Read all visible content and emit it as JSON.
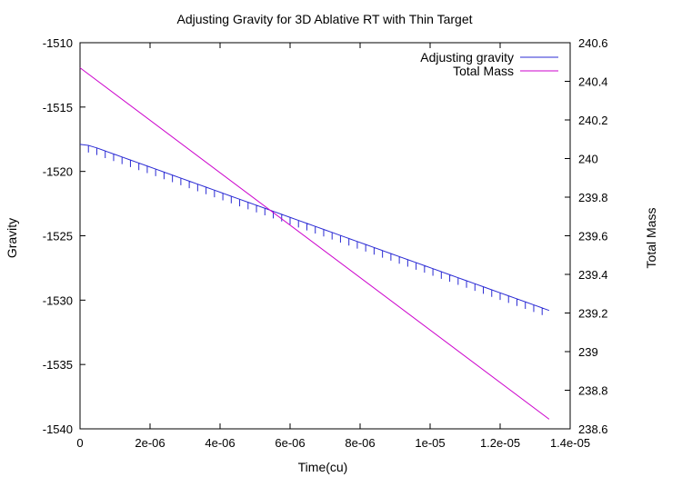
{
  "chart_data": {
    "type": "line",
    "title": "Adjusting Gravity for 3D Ablative RT with Thin Target",
    "xlabel": "Time(cu)",
    "ylabel": "Gravity",
    "y2label": "Total Mass",
    "xlim": [
      0,
      1.4e-05
    ],
    "ylim": [
      -1540,
      -1510
    ],
    "y2lim": [
      238.6,
      240.6
    ],
    "x_ticks": [
      0,
      2e-06,
      4e-06,
      6e-06,
      8e-06,
      1e-05,
      1.2e-05,
      1.4e-05
    ],
    "x_tick_labels": [
      "0",
      "2e-06",
      "4e-06",
      "6e-06",
      "8e-06",
      "1e-05",
      "1.2e-05",
      "1.4e-05"
    ],
    "y_ticks": [
      -1540,
      -1535,
      -1530,
      -1525,
      -1520,
      -1515,
      -1510
    ],
    "y_tick_labels": [
      "-1540",
      "-1535",
      "-1530",
      "-1525",
      "-1520",
      "-1515",
      "-1510"
    ],
    "y2_ticks": [
      238.6,
      238.8,
      239,
      239.2,
      239.4,
      239.6,
      239.8,
      240,
      240.2,
      240.4,
      240.6
    ],
    "y2_tick_labels": [
      "238.6",
      "238.8",
      "239",
      "239.2",
      "239.4",
      "239.6",
      "239.8",
      "240",
      "240.2",
      "240.4",
      "240.6"
    ],
    "grid": false,
    "legend_position": "top-right",
    "series": [
      {
        "name": "Adjusting gravity",
        "axis": "left",
        "color": "#2b2bd4",
        "x": [
          0,
          3e-07,
          1.34e-05
        ],
        "values": [
          -1517.9,
          -1518.0,
          -1530.8
        ],
        "sawtooth_period": 2.4e-07,
        "sawtooth_amplitude": 0.55
      },
      {
        "name": "Total Mass",
        "axis": "right",
        "color": "#cc00cc",
        "x": [
          0,
          1.34e-05
        ],
        "values": [
          240.47,
          238.65
        ]
      }
    ]
  }
}
